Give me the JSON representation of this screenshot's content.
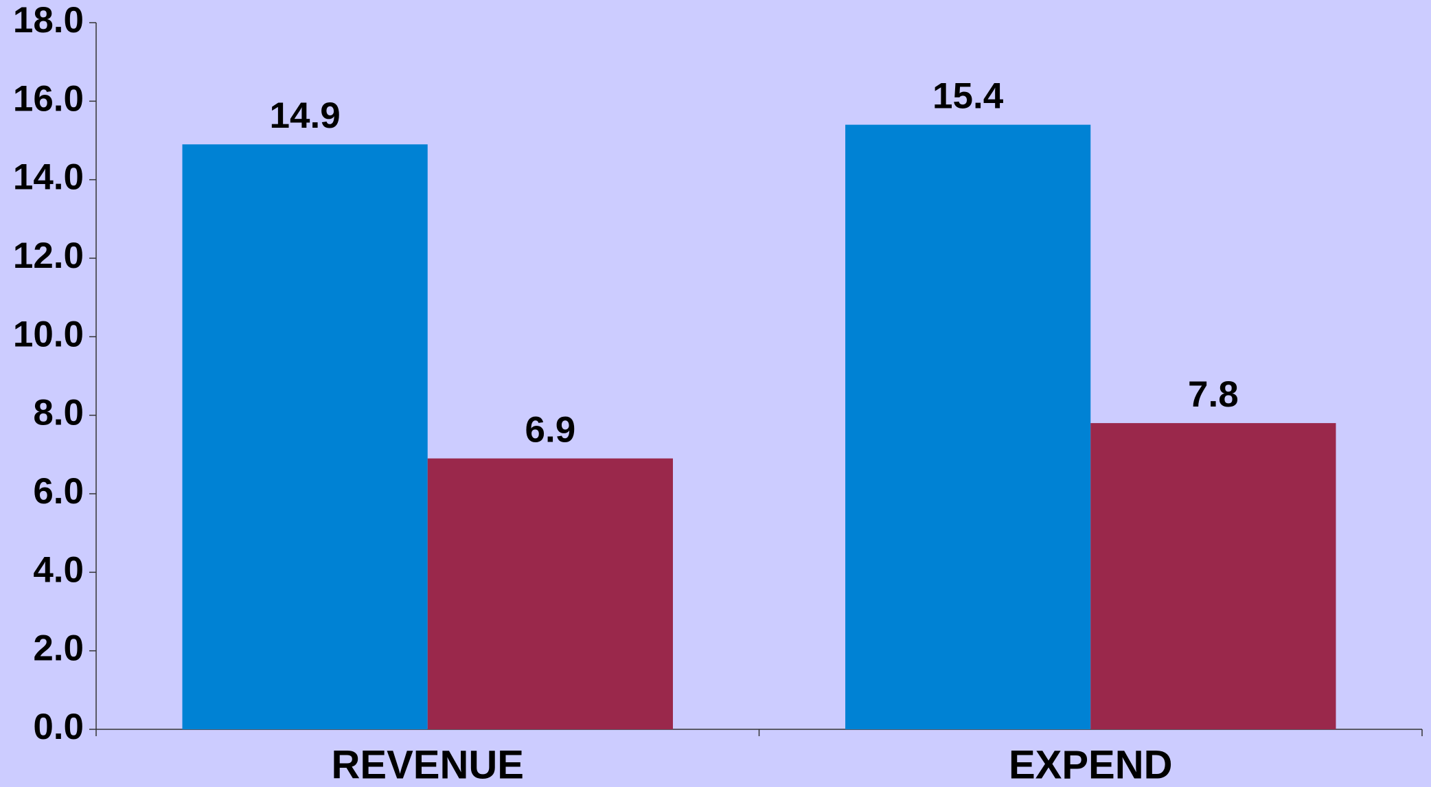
{
  "chart_data": {
    "type": "bar",
    "categories": [
      "REVENUE",
      "EXPEND"
    ],
    "series": [
      {
        "color": "#0082d4",
        "values": [
          14.9,
          15.4
        ]
      },
      {
        "color": "#9a284b",
        "values": [
          6.9,
          7.8
        ]
      }
    ],
    "ylim": [
      0,
      18
    ],
    "yticks": [
      {
        "value": 0,
        "label": "0.0"
      },
      {
        "value": 2,
        "label": "2.0"
      },
      {
        "value": 4,
        "label": "4.0"
      },
      {
        "value": 6,
        "label": "6.0"
      },
      {
        "value": 8,
        "label": "8.0"
      },
      {
        "value": 10,
        "label": "10.0"
      },
      {
        "value": 12,
        "label": "12.0"
      },
      {
        "value": 14,
        "label": "14.0"
      },
      {
        "value": 16,
        "label": "16.0"
      },
      {
        "value": 18,
        "label": "18.0"
      }
    ],
    "grid": false
  }
}
